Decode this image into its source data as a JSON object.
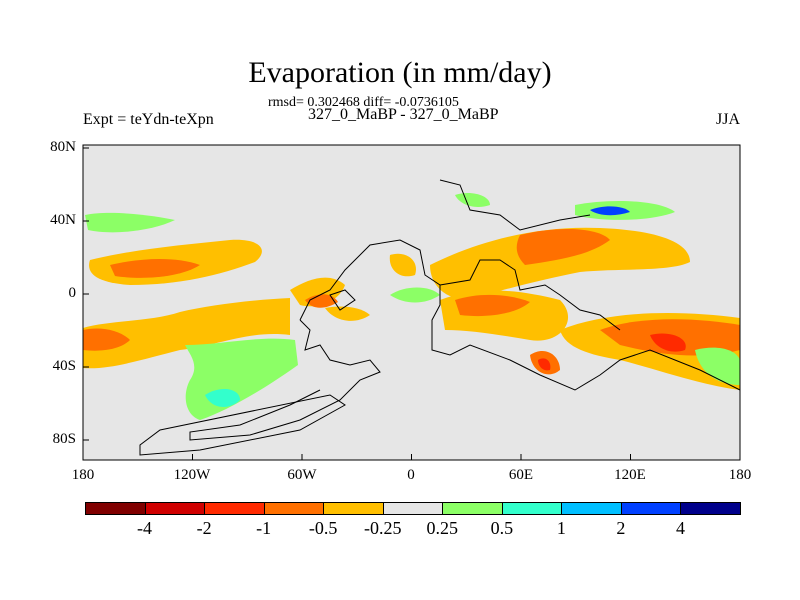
{
  "title": "Evaporation (in mm/day)",
  "stats": "rmsd= 0.302468 diff= -0.0736105",
  "subtitle": "327_0_MaBP - 327_0_MaBP",
  "left_label": "Expt = teYdn-teXpn",
  "right_label": "JJA",
  "lat_ticks": [
    "80N",
    "40N",
    "0",
    "40S",
    "80S"
  ],
  "lon_ticks": [
    "180",
    "120W",
    "60W",
    "0",
    "60E",
    "120E",
    "180"
  ],
  "colorbar": {
    "colors": [
      "#800000",
      "#d00000",
      "#ff2a00",
      "#ff7000",
      "#ffbf00",
      "#e6e6e6",
      "#8cff66",
      "#33ffcc",
      "#00bfff",
      "#0040ff",
      "#00008b"
    ],
    "labels": [
      "-4",
      "-2",
      "-1",
      "-0.5",
      "-0.25",
      "0.25",
      "0.5",
      "1",
      "2",
      "4"
    ]
  },
  "colors": {
    "background": "#e6e6e6"
  }
}
